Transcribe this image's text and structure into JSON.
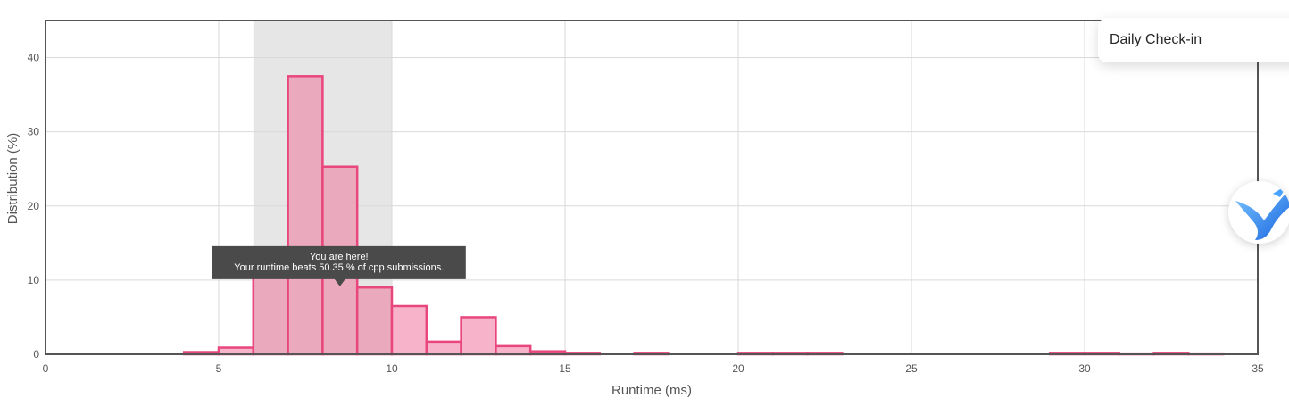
{
  "chart_data": {
    "type": "bar",
    "xlabel": "Runtime (ms)",
    "ylabel": "Distribution (%)",
    "xlim": [
      0,
      35
    ],
    "ylim": [
      0,
      45
    ],
    "x_ticks": [
      "0",
      "5",
      "10",
      "15",
      "20",
      "25",
      "30",
      "35"
    ],
    "y_ticks": [
      "0",
      "10",
      "20",
      "30",
      "40"
    ],
    "grid": true,
    "highlight_range": [
      6,
      10
    ],
    "bin_width": 1,
    "bins": [
      {
        "x0": 4,
        "value": 0.3
      },
      {
        "x0": 5,
        "value": 0.9
      },
      {
        "x0": 6,
        "value": 13.4
      },
      {
        "x0": 7,
        "value": 37.5
      },
      {
        "x0": 8,
        "value": 25.3
      },
      {
        "x0": 9,
        "value": 9.0
      },
      {
        "x0": 10,
        "value": 6.5
      },
      {
        "x0": 11,
        "value": 1.7
      },
      {
        "x0": 12,
        "value": 5.0
      },
      {
        "x0": 13,
        "value": 1.1
      },
      {
        "x0": 14,
        "value": 0.4
      },
      {
        "x0": 15,
        "value": 0.2
      },
      {
        "x0": 17,
        "value": 0.2
      },
      {
        "x0": 20,
        "value": 0.2
      },
      {
        "x0": 21,
        "value": 0.2
      },
      {
        "x0": 22,
        "value": 0.2
      },
      {
        "x0": 29,
        "value": 0.2
      },
      {
        "x0": 30,
        "value": 0.2
      },
      {
        "x0": 31,
        "value": 0.1
      },
      {
        "x0": 32,
        "value": 0.2
      },
      {
        "x0": 33,
        "value": 0.1
      }
    ],
    "annotation": {
      "line1": "You are here!",
      "line2": "Your runtime beats 50.35 % of cpp submissions.",
      "x": 8.5,
      "y": 10
    },
    "colors": {
      "bar_fill": "#f7b3c9",
      "bar_fill_highlight": "#eaa9bd",
      "bar_stroke": "#e8467c",
      "band": "#e6e6e6",
      "grid": "#d9d9d9",
      "frame": "#555555",
      "tooltip_bg": "#4a4a4a"
    }
  },
  "widgets": {
    "daily_checkin_label": "Daily Check-in"
  }
}
